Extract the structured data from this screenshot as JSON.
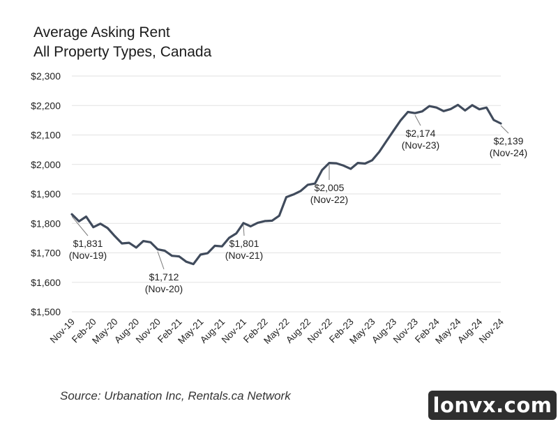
{
  "title_line1": "Average Asking Rent",
  "title_line2": "All Property Types, Canada",
  "source": "Source: Urbanation Inc, Rentals.ca Network",
  "watermark": "lonvx.com",
  "colors": {
    "line": "#404b5c",
    "grid": "#e2e2e2",
    "leader": "#7a7a7a"
  },
  "chart_data": {
    "type": "line",
    "title": "Average Asking Rent All Property Types, Canada",
    "xlabel": "",
    "ylabel": "",
    "ylim": [
      1500,
      2300
    ],
    "yticks": [
      1500,
      1600,
      1700,
      1800,
      1900,
      2000,
      2100,
      2200,
      2300
    ],
    "ytick_labels": [
      "$1,500",
      "$1,600",
      "$1,700",
      "$1,800",
      "$1,900",
      "$2,000",
      "$2,100",
      "$2,200",
      "$2,300"
    ],
    "xtick_labels": [
      "Nov-19",
      "Feb-20",
      "May-20",
      "Aug-20",
      "Nov-20",
      "Feb-21",
      "May-21",
      "Aug-21",
      "Nov-21",
      "Feb-22",
      "May-22",
      "Aug-22",
      "Nov-22",
      "Feb-23",
      "May-23",
      "Aug-23",
      "Nov-23",
      "Feb-24",
      "May-24",
      "Aug-24",
      "Nov-24"
    ],
    "grid": true,
    "legend": "none",
    "series": [
      {
        "x": [
          "Nov-19",
          "Dec-19",
          "Jan-20",
          "Feb-20",
          "Mar-20",
          "Apr-20",
          "May-20",
          "Jun-20",
          "Jul-20",
          "Aug-20",
          "Sep-20",
          "Oct-20",
          "Nov-20",
          "Dec-20",
          "Jan-21",
          "Feb-21",
          "Mar-21",
          "Apr-21",
          "May-21",
          "Jun-21",
          "Jul-21",
          "Aug-21",
          "Sep-21",
          "Oct-21",
          "Nov-21",
          "Dec-21",
          "Jan-22",
          "Feb-22",
          "Mar-22",
          "Apr-22",
          "May-22",
          "Jun-22",
          "Jul-22",
          "Aug-22",
          "Sep-22",
          "Oct-22",
          "Nov-22",
          "Dec-22",
          "Jan-23",
          "Feb-23",
          "Mar-23",
          "Apr-23",
          "May-23",
          "Jun-23",
          "Jul-23",
          "Aug-23",
          "Sep-23",
          "Oct-23",
          "Nov-23",
          "Dec-23",
          "Jan-24",
          "Feb-24",
          "Mar-24",
          "Apr-24",
          "May-24",
          "Jun-24",
          "Jul-24",
          "Aug-24",
          "Sep-24",
          "Oct-24",
          "Nov-24"
        ],
        "values": [
          1831,
          1807,
          1823,
          1787,
          1799,
          1784,
          1757,
          1732,
          1734,
          1718,
          1740,
          1736,
          1712,
          1707,
          1690,
          1688,
          1670,
          1662,
          1694,
          1699,
          1724,
          1722,
          1751,
          1766,
          1801,
          1790,
          1802,
          1808,
          1809,
          1826,
          1889,
          1898,
          1910,
          1931,
          1935,
          1981,
          2005,
          2004,
          1996,
          1985,
          2005,
          2003,
          2014,
          2043,
          2079,
          2115,
          2150,
          2178,
          2174,
          2180,
          2198,
          2193,
          2181,
          2188,
          2202,
          2183,
          2201,
          2187,
          2193,
          2151,
          2139
        ]
      }
    ],
    "annotations": [
      {
        "x": "Nov-19",
        "value_label": "$1,831",
        "date_label": "(Nov-19)"
      },
      {
        "x": "Nov-20",
        "value_label": "$1,712",
        "date_label": "(Nov-20)"
      },
      {
        "x": "Nov-21",
        "value_label": "$1,801",
        "date_label": "(Nov-21)"
      },
      {
        "x": "Nov-22",
        "value_label": "$2,005",
        "date_label": "(Nov-22)"
      },
      {
        "x": "Nov-23",
        "value_label": "$2,174",
        "date_label": "(Nov-23)"
      },
      {
        "x": "Nov-24",
        "value_label": "$2,139",
        "date_label": "(Nov-24)"
      }
    ]
  }
}
